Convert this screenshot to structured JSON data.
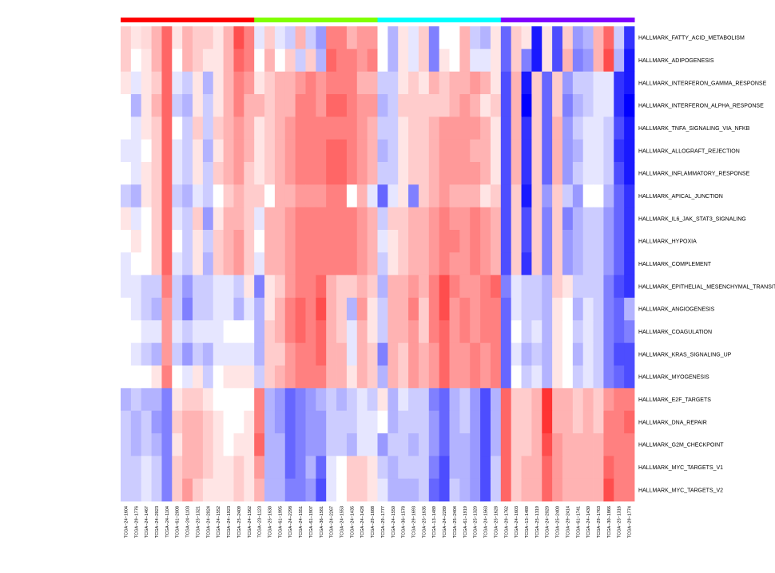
{
  "chart_data": {
    "type": "heatmap",
    "title": "",
    "xlabel": "",
    "ylabel": "",
    "color_scale": {
      "low": "#0000ff",
      "mid": "#ffffff",
      "high": "#ff0000"
    },
    "value_range": [
      -1,
      1
    ],
    "groups": [
      {
        "color": "#ff0000",
        "count": 13
      },
      {
        "color": "#80ff00",
        "count": 12
      },
      {
        "color": "#00ffff",
        "count": 12
      },
      {
        "color": "#8000ff",
        "count": 13
      }
    ],
    "columns": [
      "TCGA−24−1604",
      "TCGA−29−1776",
      "TCGA−24−1467",
      "TCGA−24−2023",
      "TCGA−24−1104",
      "TCGA−61−2008",
      "TCGA−24−1103",
      "TCGA−25−1321",
      "TCGA−24−2024",
      "TCGA−24−1552",
      "TCGA−24−1923",
      "TCGA−25−2409",
      "TCGA−24−1562",
      "TCGA−23−1123",
      "TCGA−25−1630",
      "TCGA−61−1995",
      "TCGA−24−2298",
      "TCGA−24−1551",
      "TCGA−61−1907",
      "TCGA−36−1581",
      "TCGA−24−2267",
      "TCGA−24−1553",
      "TCGA−24−1435",
      "TCGA−24−1428",
      "TCGA−29−1688",
      "TCGA−29−1777",
      "TCGA−24−1550",
      "TCGA−36−1578",
      "TCGA−29−1693",
      "TCGA−25−1635",
      "TCGA−13−1489",
      "TCGA−24−2289",
      "TCGA−25−2404",
      "TCGA−61−1919",
      "TCGA−25−1320",
      "TCGA−24−1563",
      "TCGA−25−1628",
      "TCGA−29−1762",
      "TCGA−24−1603",
      "TCGA−13−1489",
      "TCGA−25−1319",
      "TCGA−24−2020",
      "TCGA−25−2400",
      "TCGA−29−2414",
      "TCGA−61−1741",
      "TCGA−24−1430",
      "TCGA−29−1763",
      "TCGA−30−1866",
      "TCGA−25−1316",
      "TCGA−29−1774"
    ],
    "rows": [
      "HALLMARK_FATTY_ACID_METABOLISM",
      "HALLMARK_ADIPOGENESIS",
      "HALLMARK_INTERFERON_GAMMA_RESPONSE",
      "HALLMARK_INTERFERON_ALPHA_RESPONSE",
      "HALLMARK_TNFA_SIGNALING_VIA_NFKB",
      "HALLMARK_ALLOGRAFT_REJECTION",
      "HALLMARK_INFLAMMATORY_RESPONSE",
      "HALLMARK_APICAL_JUNCTION",
      "HALLMARK_IL6_JAK_STAT3_SIGNALING",
      "HALLMARK_HYPOXIA",
      "HALLMARK_COMPLEMENT",
      "HALLMARK_EPITHELIAL_MESENCHYMAL_TRANSITION",
      "HALLMARK_ANGIOGENESIS",
      "HALLMARK_COAGULATION",
      "HALLMARK_KRAS_SIGNALING_UP",
      "HALLMARK_MYOGENESIS",
      "HALLMARK_E2F_TARGETS",
      "HALLMARK_DNA_REPAIR",
      "HALLMARK_G2M_CHECKPOINT",
      "HALLMARK_MYC_TARGETS_V1",
      "HALLMARK_MYC_TARGETS_V2"
    ],
    "values": [
      [
        0.2,
        0.1,
        0.15,
        0.3,
        0.6,
        0.1,
        0.3,
        0.2,
        0.2,
        0.1,
        0.3,
        0.7,
        0.5,
        -0.1,
        0.2,
        -0.1,
        -0.2,
        0.3,
        -0.2,
        -0.4,
        0.5,
        0.5,
        0.3,
        0.4,
        0.4,
        0,
        -0.3,
        0.1,
        -0.1,
        0.2,
        -0.5,
        0,
        0,
        0.3,
        -0.2,
        -0.3,
        0.1,
        -0.6,
        0.2,
        0.1,
        -0.9,
        0.1,
        -0.7,
        0.2,
        -0.4,
        -0.3,
        0.3,
        0.6,
        -0.2,
        -0.8
      ],
      [
        0.2,
        0,
        0.1,
        0.3,
        0.6,
        0,
        0.3,
        0.2,
        0.1,
        0.1,
        0.3,
        0.6,
        0.5,
        0,
        0.3,
        0,
        0.2,
        -0.2,
        0.2,
        -0.3,
        0.6,
        0.5,
        0.5,
        0.4,
        0.5,
        0,
        -0.3,
        0.1,
        -0.1,
        0.2,
        -0.5,
        0.1,
        0,
        0.3,
        -0.1,
        -0.1,
        0.1,
        -0.6,
        0.2,
        -0.5,
        -0.9,
        0.1,
        -0.7,
        0.3,
        -0.5,
        -0.4,
        0.3,
        0.7,
        -0.3,
        -0.9
      ],
      [
        0.1,
        -0.1,
        0.1,
        0.2,
        0.6,
        -0.1,
        -0.2,
        0.1,
        -0.3,
        0.1,
        0.3,
        0.5,
        0.4,
        0.1,
        0.2,
        0.3,
        0.3,
        0.4,
        0.5,
        0.4,
        0.5,
        0.5,
        0.5,
        0.3,
        0.3,
        -0.2,
        -0.2,
        0.1,
        0.2,
        0.1,
        0.3,
        0.2,
        0.3,
        0.3,
        0.4,
        0.3,
        0.1,
        -0.7,
        0.3,
        -0.9,
        0.2,
        -0.6,
        0.2,
        -0.4,
        -0.2,
        -0.2,
        -0.1,
        -0.1,
        -0.8,
        -0.9
      ],
      [
        0,
        -0.3,
        0.1,
        0.3,
        0.6,
        -0.2,
        -0.3,
        0.1,
        -0.2,
        0.1,
        0.3,
        0.5,
        0.3,
        0.3,
        0.2,
        0.3,
        0.3,
        0.5,
        0.5,
        0.4,
        0.6,
        0.6,
        0.5,
        0.4,
        0.4,
        -0.3,
        -0.2,
        0.2,
        0.2,
        0.2,
        0.2,
        0.2,
        0.3,
        0.4,
        0.3,
        0.1,
        0.2,
        -0.7,
        0.3,
        -1,
        0.2,
        -0.6,
        0.2,
        -0.5,
        -0.3,
        -0.2,
        -0.1,
        -0.1,
        -0.8,
        -1
      ],
      [
        0,
        -0.1,
        0.1,
        0.2,
        0.6,
        0,
        -0.2,
        0.2,
        -0.2,
        0.2,
        0.3,
        0.4,
        0.3,
        0.1,
        0.2,
        0.3,
        0.4,
        0.5,
        0.5,
        0.5,
        0.5,
        0.5,
        0.5,
        0.4,
        0.3,
        -0.2,
        -0.2,
        0.1,
        0.2,
        0.2,
        0.3,
        0.4,
        0.4,
        0.4,
        0.4,
        0.3,
        0.1,
        -0.7,
        0.3,
        -0.8,
        0.2,
        -0.6,
        0.3,
        -0.4,
        -0.2,
        -0.1,
        -0.1,
        -0.2,
        -0.7,
        -0.9
      ],
      [
        -0.1,
        -0.1,
        0,
        0.2,
        0.6,
        -0.1,
        -0.2,
        0.1,
        -0.3,
        0.1,
        0.3,
        0.4,
        0.3,
        0.1,
        0.2,
        0.3,
        0.4,
        0.5,
        0.5,
        0.5,
        0.6,
        0.6,
        0.5,
        0.4,
        0.3,
        -0.3,
        -0.2,
        0.1,
        0.2,
        0.2,
        0.3,
        0.4,
        0.4,
        0.4,
        0.3,
        0.3,
        0.1,
        -0.7,
        0.3,
        -0.8,
        0.2,
        -0.6,
        0.3,
        -0.4,
        -0.3,
        -0.1,
        -0.1,
        -0.2,
        -0.8,
        -0.9
      ],
      [
        0,
        -0.1,
        0.1,
        0.2,
        0.6,
        -0.1,
        -0.2,
        0.1,
        -0.2,
        0.2,
        0.3,
        0.4,
        0.2,
        0.1,
        0.2,
        0.3,
        0.4,
        0.5,
        0.5,
        0.5,
        0.6,
        0.6,
        0.5,
        0.4,
        0.3,
        -0.2,
        -0.2,
        0.1,
        0.2,
        0.2,
        0.3,
        0.4,
        0.4,
        0.4,
        0.4,
        0.3,
        0.1,
        -0.7,
        0.3,
        -0.8,
        0.2,
        -0.6,
        0.3,
        -0.4,
        -0.2,
        -0.1,
        -0.1,
        -0.2,
        -0.7,
        -0.9
      ],
      [
        -0.2,
        -0.3,
        0.1,
        0.2,
        0.6,
        -0.2,
        -0.3,
        -0.1,
        -0.2,
        0,
        0.2,
        0.3,
        0.2,
        0.2,
        0,
        0.3,
        0.3,
        0.4,
        0.4,
        0.4,
        0.5,
        0.5,
        0,
        0.3,
        -0.1,
        -0.6,
        -0.1,
        0.1,
        -0.5,
        0.2,
        0.3,
        0.4,
        0.3,
        0.3,
        0.3,
        0.1,
        0.2,
        -0.7,
        0.2,
        -0.9,
        0.2,
        -0.4,
        0.2,
        -0.2,
        -0.4,
        0,
        0,
        -0.3,
        -0.6,
        -0.8
      ],
      [
        0.1,
        -0.1,
        0,
        0.2,
        0.6,
        -0.1,
        -0.2,
        0.2,
        -0.4,
        0.1,
        0.3,
        0.3,
        0.2,
        -0.1,
        0.3,
        0.3,
        0.4,
        0.5,
        0.5,
        0.5,
        0.5,
        0.5,
        0.5,
        0.4,
        0.3,
        -0.2,
        0.2,
        0.2,
        0.3,
        0.3,
        0.4,
        0.5,
        0.4,
        0.4,
        0.5,
        0.4,
        0.3,
        -0.7,
        0.2,
        -0.7,
        0.2,
        -0.5,
        0.2,
        -0.5,
        -0.3,
        -0.2,
        -0.2,
        -0.4,
        -0.6,
        -0.8
      ],
      [
        0,
        0.1,
        0,
        0.2,
        0.6,
        0,
        -0.2,
        0.1,
        -0.2,
        0.2,
        0.3,
        0.4,
        0.2,
        0,
        0.3,
        0.3,
        0.4,
        0.5,
        0.5,
        0.5,
        0.5,
        0.5,
        0.5,
        0.4,
        0.3,
        -0.1,
        0.1,
        0.2,
        0.3,
        0.3,
        0.4,
        0.5,
        0.5,
        0.4,
        0.5,
        0.4,
        0.3,
        -0.7,
        0.2,
        -0.7,
        0.2,
        -0.5,
        0.2,
        -0.4,
        -0.3,
        -0.2,
        -0.2,
        -0.4,
        -0.6,
        -0.8
      ],
      [
        -0.1,
        0,
        0,
        0.2,
        0.6,
        -0.1,
        -0.2,
        0.1,
        -0.3,
        0.2,
        0.3,
        0.4,
        0.2,
        -0.1,
        0.3,
        0.3,
        0.4,
        0.5,
        0.5,
        0.5,
        0.5,
        0.5,
        0.5,
        0.4,
        0.3,
        -0.2,
        0.1,
        0.2,
        0.3,
        0.3,
        0.4,
        0.5,
        0.4,
        0.4,
        0.5,
        0.4,
        0.3,
        -0.7,
        0.2,
        -0.8,
        0.2,
        -0.5,
        0.2,
        -0.4,
        -0.3,
        -0.2,
        -0.2,
        -0.4,
        -0.6,
        -0.8
      ],
      [
        -0.1,
        -0.1,
        -0.2,
        -0.2,
        0.5,
        -0.2,
        -0.4,
        -0.2,
        -0.2,
        -0.1,
        -0.1,
        -0.2,
        0.1,
        -0.5,
        0.1,
        0.2,
        0.4,
        0.5,
        0.5,
        0.6,
        0.3,
        0.2,
        0.2,
        0.3,
        0.2,
        -0.3,
        0.3,
        0.3,
        0.4,
        0.3,
        0.5,
        0.7,
        0.5,
        0.4,
        0.4,
        0.5,
        0.6,
        -0.5,
        -0.1,
        -0.2,
        -0.2,
        -0.3,
        0.2,
        0.1,
        -0.2,
        -0.2,
        -0.2,
        -0.5,
        -0.7,
        -0.8
      ],
      [
        0,
        -0.1,
        -0.2,
        -0.3,
        0.4,
        -0.2,
        -0.5,
        -0.2,
        -0.2,
        -0.1,
        -0.1,
        -0.3,
        -0.1,
        -0.3,
        0.1,
        0.3,
        0.5,
        0.6,
        0.5,
        0.7,
        0.3,
        0.2,
        -0.3,
        0.4,
        0.1,
        -0.2,
        0.3,
        0.3,
        0.5,
        0.2,
        0.5,
        0.7,
        0.4,
        0.5,
        0.4,
        0.5,
        0.5,
        -0.6,
        -0.1,
        -0.2,
        -0.2,
        -0.3,
        0.1,
        0,
        -0.3,
        -0.1,
        -0.2,
        -0.5,
        -0.6,
        -0.3
      ],
      [
        0,
        0,
        -0.1,
        -0.1,
        0.4,
        -0.1,
        -0.2,
        -0.1,
        -0.1,
        -0.1,
        0,
        0,
        0,
        -0.3,
        0.2,
        0.3,
        0.5,
        0.6,
        0.5,
        0.6,
        0.3,
        0.2,
        -0.1,
        0.3,
        0.1,
        -0.2,
        0.3,
        0.3,
        0.4,
        0.2,
        0.5,
        0.6,
        0.4,
        0.5,
        0.4,
        0.5,
        0.5,
        -0.6,
        0,
        -0.2,
        -0.1,
        -0.3,
        0.1,
        0,
        -0.2,
        -0.1,
        -0.2,
        -0.5,
        -0.6,
        -0.5
      ],
      [
        0,
        -0.1,
        -0.2,
        -0.3,
        0.4,
        -0.2,
        -0.4,
        -0.2,
        -0.3,
        -0.1,
        -0.1,
        -0.1,
        -0.1,
        -0.3,
        0.2,
        0.2,
        0.4,
        0.5,
        0.5,
        0.6,
        0.3,
        0.3,
        -0.1,
        0.3,
        0.2,
        -0.5,
        0.3,
        0.2,
        0.4,
        0.3,
        0.4,
        0.6,
        0.4,
        0.4,
        0.5,
        0.4,
        0.5,
        -0.6,
        -0.1,
        -0.3,
        -0.2,
        -0.3,
        0.1,
        0,
        -0.3,
        -0.1,
        -0.2,
        -0.5,
        -0.7,
        -0.7
      ],
      [
        0,
        0,
        0,
        0.1,
        0.5,
        0,
        -0.1,
        0.1,
        -0.2,
        0,
        0.1,
        0.1,
        0.1,
        -0.2,
        0.2,
        0.3,
        0.4,
        0.5,
        0.5,
        0.5,
        0.3,
        0.3,
        0.1,
        0.3,
        0.2,
        -0.3,
        0.3,
        0.2,
        0.4,
        0.3,
        0.4,
        0.6,
        0.4,
        0.4,
        0.5,
        0.4,
        0.5,
        -0.6,
        0,
        -0.2,
        -0.1,
        -0.3,
        0.1,
        0,
        -0.2,
        -0.1,
        -0.2,
        -0.5,
        -0.6,
        -0.7
      ],
      [
        -0.3,
        -0.2,
        -0.3,
        -0.3,
        -0.5,
        0.1,
        0.2,
        0.2,
        0.1,
        0,
        0,
        0,
        0,
        0.5,
        -0.3,
        -0.4,
        -0.6,
        -0.5,
        -0.4,
        -0.3,
        -0.2,
        -0.3,
        -0.2,
        -0.1,
        -0.2,
        0.1,
        -0.3,
        -0.1,
        -0.2,
        -0.2,
        -0.5,
        -0.6,
        -0.3,
        -0.2,
        -0.4,
        -0.7,
        -0.3,
        0.6,
        0.2,
        0.2,
        0.3,
        0.8,
        0.3,
        0.3,
        0.2,
        0.3,
        0.2,
        0.4,
        0.5,
        0.5
      ],
      [
        -0.2,
        -0.3,
        -0.2,
        -0.4,
        -0.5,
        0.2,
        0.3,
        0.3,
        0.2,
        0.1,
        0,
        0,
        0.1,
        0.5,
        -0.3,
        -0.4,
        -0.6,
        -0.5,
        -0.4,
        -0.4,
        -0.2,
        -0.2,
        -0.2,
        -0.1,
        -0.1,
        0,
        -0.3,
        -0.2,
        -0.2,
        -0.2,
        -0.4,
        -0.6,
        -0.3,
        -0.2,
        -0.4,
        -0.7,
        -0.3,
        0.6,
        0.2,
        0.2,
        0.3,
        0.8,
        0.3,
        0.3,
        0.2,
        0.3,
        0.2,
        0.5,
        0.5,
        0.6
      ],
      [
        -0.2,
        -0.3,
        -0.2,
        -0.3,
        -0.5,
        0.1,
        0.3,
        0.3,
        0.2,
        0.1,
        0,
        0.1,
        0.1,
        0.6,
        -0.3,
        -0.3,
        -0.6,
        -0.5,
        -0.4,
        -0.4,
        -0.2,
        -0.2,
        -0.3,
        -0.1,
        -0.1,
        -0.4,
        -0.2,
        -0.2,
        -0.3,
        -0.2,
        -0.4,
        -0.6,
        -0.3,
        -0.3,
        -0.4,
        -0.7,
        -0.3,
        0.6,
        0.2,
        0.2,
        0.3,
        0.7,
        0.4,
        0.3,
        0.3,
        0.3,
        0.3,
        0.5,
        0.5,
        0.5
      ],
      [
        -0.2,
        -0.2,
        -0.1,
        -0.2,
        -0.5,
        0.2,
        0.3,
        0.3,
        0.2,
        0.1,
        0.1,
        0.2,
        0.1,
        0.4,
        -0.3,
        -0.3,
        -0.6,
        -0.5,
        -0.3,
        -0.6,
        -0.1,
        0,
        0.2,
        0.2,
        0.1,
        -0.2,
        -0.3,
        -0.2,
        -0.2,
        -0.2,
        -0.5,
        -0.7,
        -0.3,
        -0.3,
        -0.4,
        -0.7,
        -0.2,
        0.6,
        0.2,
        0.3,
        0.3,
        0.6,
        0.4,
        0.3,
        0.3,
        0.3,
        0.3,
        0.6,
        0.5,
        0.5
      ],
      [
        -0.2,
        -0.2,
        -0.1,
        -0.2,
        -0.5,
        0.2,
        0.4,
        0.2,
        0.1,
        0.1,
        0.1,
        0.2,
        0.1,
        0.3,
        -0.3,
        -0.3,
        -0.5,
        -0.5,
        -0.4,
        -0.7,
        -0.1,
        0,
        0.2,
        0.2,
        0.1,
        -0.1,
        -0.3,
        -0.3,
        -0.3,
        -0.2,
        -0.6,
        -0.7,
        -0.2,
        -0.3,
        -0.4,
        -0.7,
        -0.2,
        0.6,
        0.2,
        0.3,
        0.3,
        0.6,
        0.4,
        0.3,
        0.3,
        0.3,
        0.3,
        0.7,
        0.5,
        0.5
      ]
    ]
  }
}
